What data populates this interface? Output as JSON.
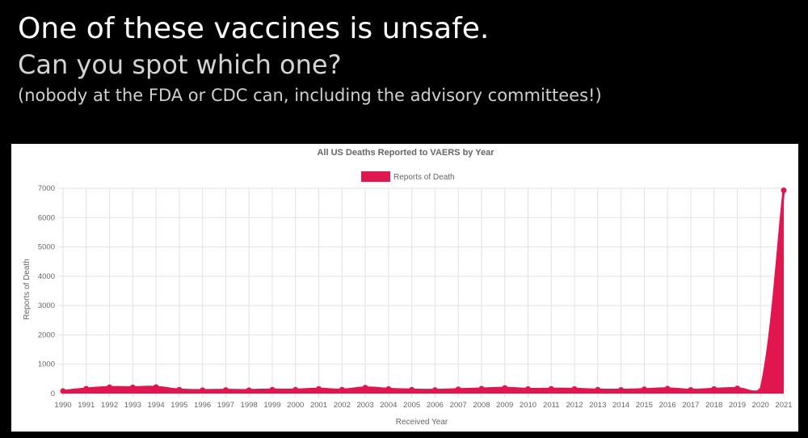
{
  "headline": {
    "line1": "One of these vaccines is unsafe.",
    "line2": "Can you spot which one?",
    "line3": "(nobody at the FDA or CDC can, including the advisory committees!)"
  },
  "chart_data": {
    "type": "area",
    "title": "All US Deaths Reported to VAERS by Year",
    "xlabel": "Received Year",
    "ylabel": "Reports of Death",
    "legend": "top-center",
    "grid": true,
    "ylim": [
      0,
      7000
    ],
    "yticks": [
      "0",
      "1000",
      "2000",
      "3000",
      "4000",
      "5000",
      "6000",
      "7000"
    ],
    "categories": [
      "1990",
      "1991",
      "1992",
      "1993",
      "1994",
      "1995",
      "1996",
      "1997",
      "1998",
      "1999",
      "2000",
      "2001",
      "2002",
      "2003",
      "2004",
      "2005",
      "2006",
      "2007",
      "2008",
      "2009",
      "2010",
      "2011",
      "2012",
      "2013",
      "2014",
      "2015",
      "2016",
      "2017",
      "2018",
      "2019",
      "2020",
      "2021"
    ],
    "series": [
      {
        "name": "Reports of Death",
        "color": "#e0174f",
        "values": [
          85,
          165,
          215,
          210,
          220,
          130,
          115,
          120,
          115,
          130,
          130,
          160,
          130,
          200,
          155,
          130,
          120,
          145,
          165,
          190,
          155,
          160,
          155,
          130,
          125,
          145,
          170,
          125,
          155,
          175,
          90,
          6930
        ]
      }
    ]
  }
}
